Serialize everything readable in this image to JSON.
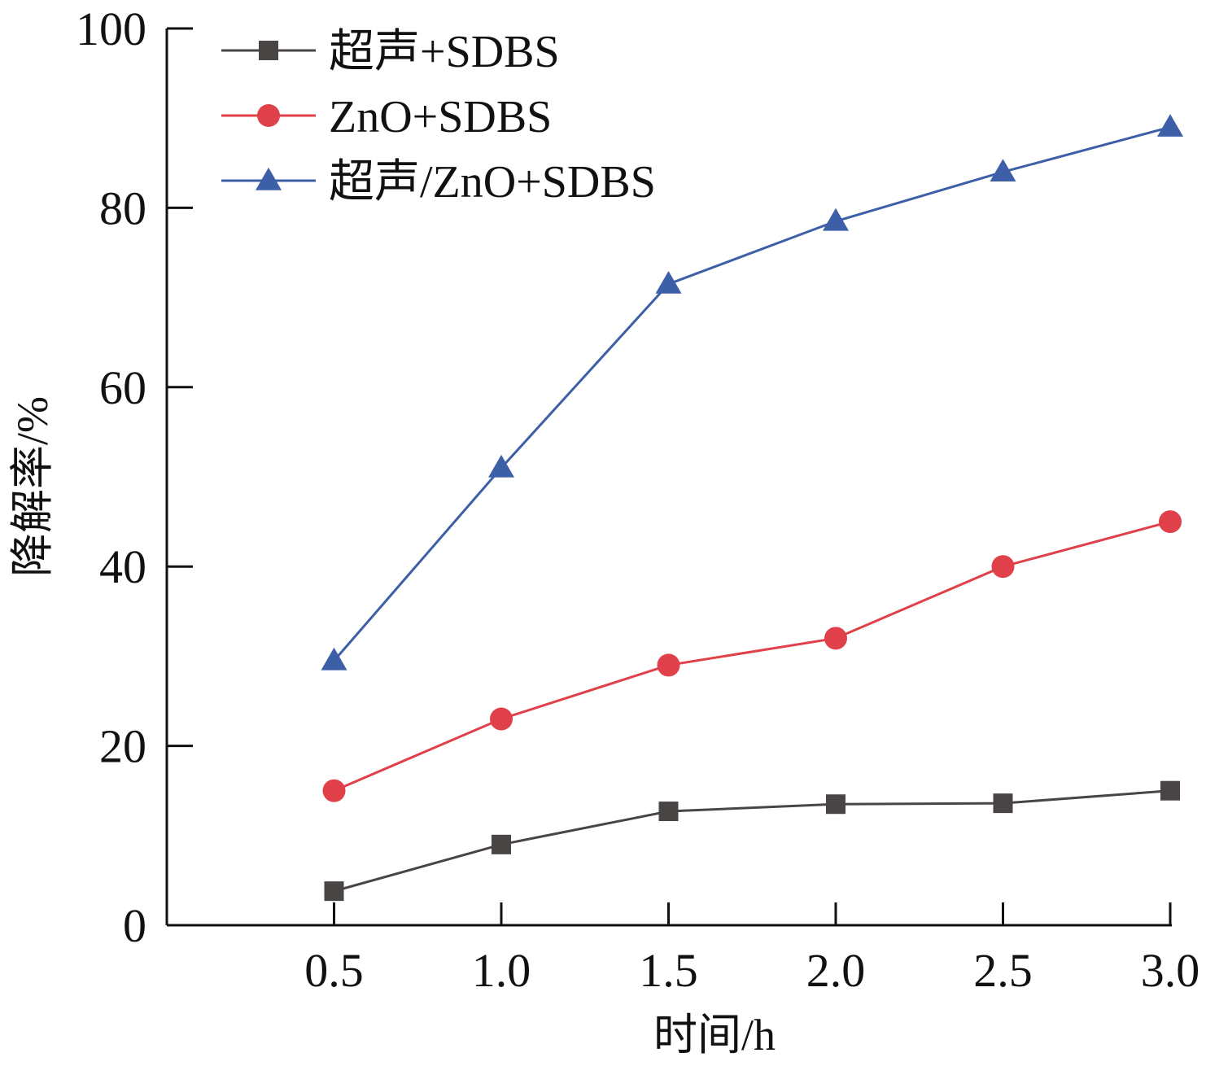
{
  "chart_data": {
    "type": "line",
    "title": "",
    "xlabel": "时间/h",
    "ylabel": "降解率/%",
    "x": [
      0.5,
      1.0,
      1.5,
      2.0,
      2.5,
      3.0
    ],
    "x_tick_labels": [
      "0.5",
      "1.0",
      "1.5",
      "2.0",
      "2.5",
      "3.0"
    ],
    "y_ticks": [
      0,
      20,
      40,
      60,
      80,
      100
    ],
    "y_tick_labels": [
      "0",
      "20",
      "40",
      "60",
      "80",
      "100"
    ],
    "xlim": [
      0.0,
      3.0
    ],
    "ylim": [
      0,
      100
    ],
    "grid": false,
    "legend_position": "top-left",
    "series": [
      {
        "name": "超声+SDBS",
        "marker": "square",
        "color": "#4a4545",
        "values": [
          3.8,
          9.0,
          12.7,
          13.5,
          13.6,
          15.0
        ]
      },
      {
        "name": "ZnO+SDBS",
        "marker": "circle",
        "color": "#e0404a",
        "values": [
          15.0,
          23.0,
          29.0,
          32.0,
          40.0,
          45.0
        ]
      },
      {
        "name": "超声/ZnO+SDBS",
        "marker": "triangle",
        "color": "#3d5fa8",
        "values": [
          29.5,
          51.0,
          71.5,
          78.5,
          84.0,
          89.0
        ]
      }
    ]
  }
}
